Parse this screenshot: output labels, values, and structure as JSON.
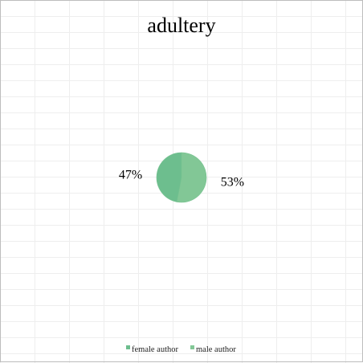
{
  "chart_data": {
    "type": "pie",
    "title": "adultery",
    "categories": [
      "female author",
      "male author"
    ],
    "values": [
      47,
      53
    ],
    "value_labels": [
      "47%",
      "53%"
    ],
    "colors": [
      "#6dbe8e",
      "#82c796"
    ],
    "legend": {
      "position": "bottom",
      "entries": [
        "female author",
        "male author"
      ]
    },
    "grid": true
  }
}
